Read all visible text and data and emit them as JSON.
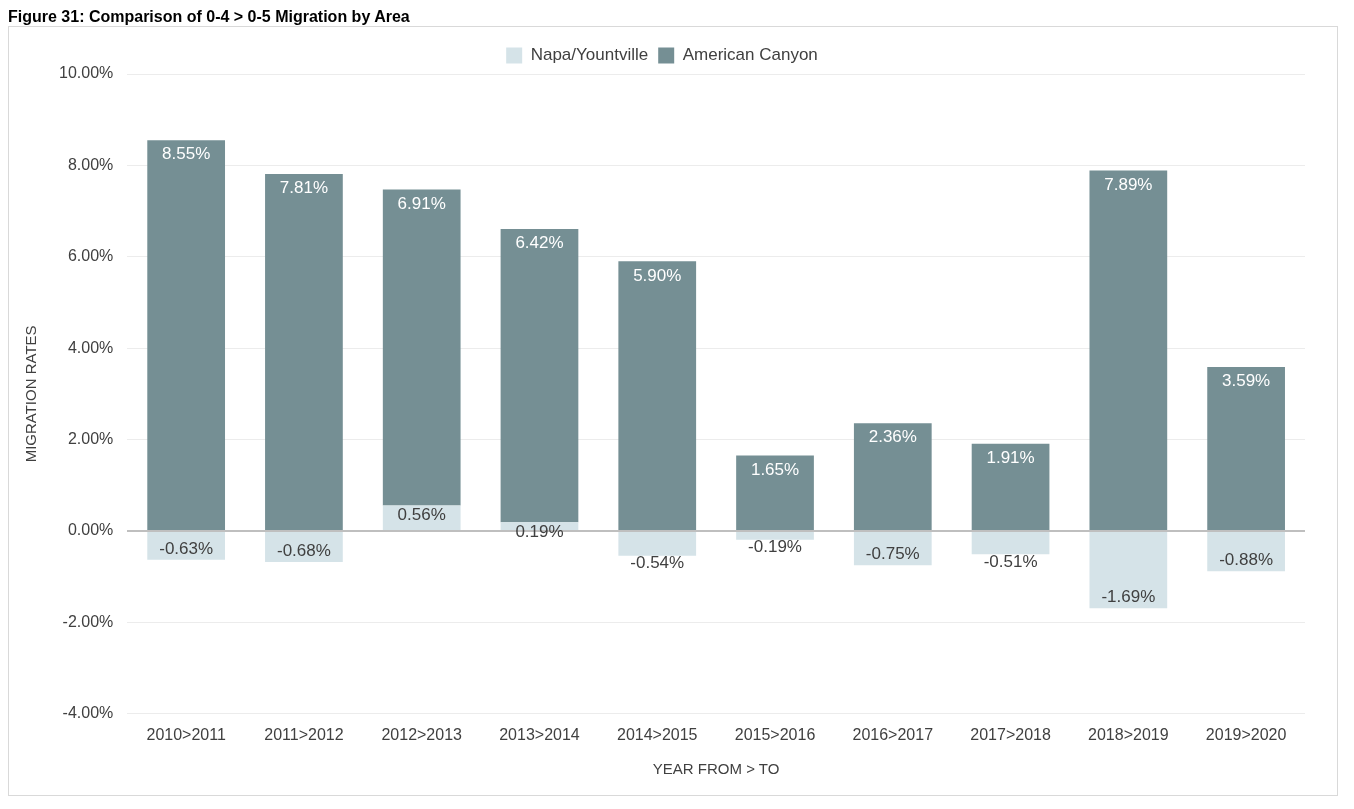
{
  "chart_data": {
    "type": "bar",
    "title": "Figure 31: Comparison of 0-4 > 0-5 Migration by Area",
    "xlabel": "YEAR FROM > TO",
    "ylabel": "MIGRATION RATES",
    "categories": [
      "2010>2011",
      "2011>2012",
      "2012>2013",
      "2013>2014",
      "2014>2015",
      "2015>2016",
      "2016>2017",
      "2017>2018",
      "2018>2019",
      "2019>2020"
    ],
    "series": [
      {
        "name": "Napa/Yountville",
        "color": "#d5e3e8",
        "values": [
          -0.63,
          -0.68,
          0.56,
          0.19,
          -0.54,
          -0.19,
          -0.75,
          -0.51,
          -1.69,
          -0.88
        ],
        "value_labels": [
          "-0.63%",
          "-0.68%",
          "0.56%",
          "0.19%",
          "-0.54%",
          "-0.19%",
          "-0.75%",
          "-0.51%",
          "-1.69%",
          "-0.88%"
        ]
      },
      {
        "name": "American Canyon",
        "color": "#758f94",
        "values": [
          8.55,
          7.81,
          6.91,
          6.42,
          5.9,
          1.65,
          2.36,
          1.91,
          7.89,
          3.59
        ],
        "value_labels": [
          "8.55%",
          "7.81%",
          "6.91%",
          "6.42%",
          "5.90%",
          "1.65%",
          "2.36%",
          "1.91%",
          "7.89%",
          "3.59%"
        ]
      }
    ],
    "stacked": true,
    "legend": "top",
    "grid": "y",
    "ylim": [
      -4,
      10
    ],
    "yticks": [
      {
        "value": -4,
        "label": "-4.00%"
      },
      {
        "value": -2,
        "label": "-2.00%"
      },
      {
        "value": 0,
        "label": "0.00%"
      },
      {
        "value": 2,
        "label": "2.00%"
      },
      {
        "value": 4,
        "label": "4.00%"
      },
      {
        "value": 6,
        "label": "6.00%"
      },
      {
        "value": 8,
        "label": "8.00%"
      },
      {
        "value": 10,
        "label": "10.00%"
      }
    ]
  }
}
